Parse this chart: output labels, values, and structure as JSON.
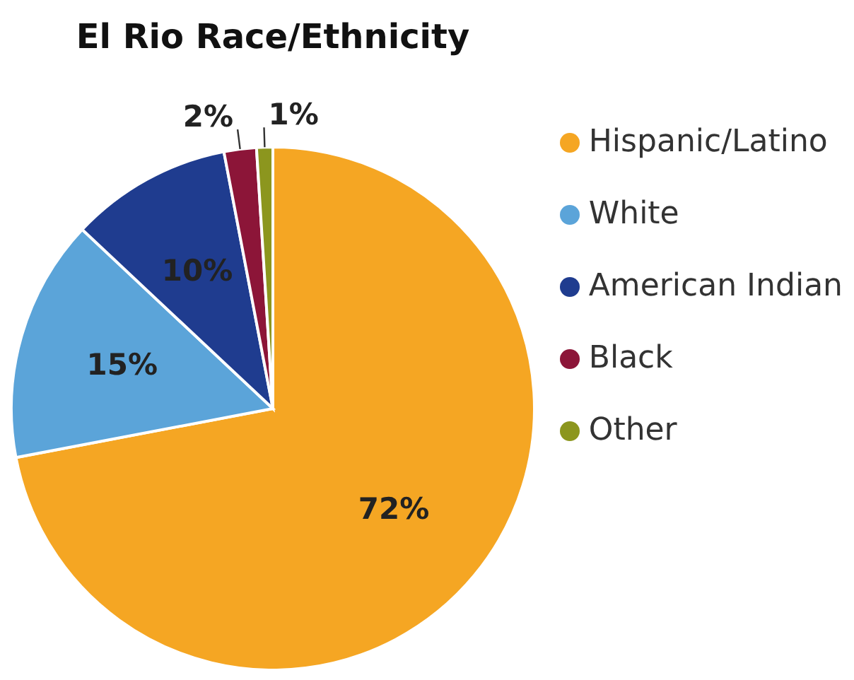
{
  "chart_data": {
    "type": "pie",
    "title": "El Rio Race/Ethnicity",
    "categories": [
      "Hispanic/Latino",
      "White",
      "American Indian",
      "Black",
      "Other"
    ],
    "values": [
      72,
      15,
      10,
      2,
      1
    ],
    "colors": [
      "#f5a623",
      "#5ba4d9",
      "#1f3c8f",
      "#8c1538",
      "#8c961e"
    ],
    "value_labels": [
      "72%",
      "15%",
      "10%",
      "2%",
      "1%"
    ],
    "legend": "right"
  }
}
